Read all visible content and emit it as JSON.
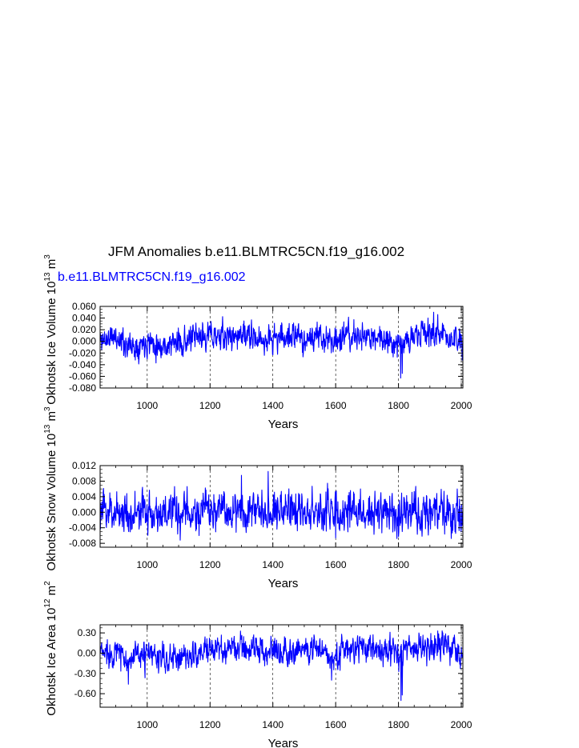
{
  "title": "JFM Anomalies b.e11.BLMTRC5CN.f19_g16.002",
  "subtitle": "b.e11.BLMTRC5CN.f19_g16.002",
  "colors": {
    "series": "#0000ff",
    "axis": "#000000",
    "grid": "#000000"
  },
  "chart_data": [
    {
      "type": "line",
      "title": "",
      "xlabel": "Years",
      "ylabel_text": "Okhotsk Ice Volume 10",
      "ylabel_exp": "13",
      "ylabel_unit": "m",
      "ylabel_unit_exp": "3",
      "xlim": [
        850,
        2005
      ],
      "ylim": [
        -0.08,
        0.06
      ],
      "xticks": [
        1000,
        1200,
        1400,
        1600,
        1800,
        2000
      ],
      "yticks": [
        "0.060",
        "0.040",
        "0.020",
        "0.000",
        "-0.020",
        "-0.040",
        "-0.060",
        "-0.080"
      ],
      "ytick_values": [
        0.06,
        0.04,
        0.02,
        0.0,
        -0.02,
        -0.04,
        -0.06,
        -0.08
      ],
      "grid": "dashed vertical at x ticks",
      "series": [
        {
          "x_start": 850,
          "x_end": 2005,
          "anchors": [
            [
              850,
              0.002
            ],
            [
              900,
              0.008
            ],
            [
              950,
              -0.01
            ],
            [
              1000,
              0.002
            ],
            [
              1050,
              -0.008
            ],
            [
              1100,
              -0.002
            ],
            [
              1150,
              0.004
            ],
            [
              1200,
              0.012
            ],
            [
              1250,
              0.006
            ],
            [
              1300,
              0.012
            ],
            [
              1350,
              0.002
            ],
            [
              1400,
              0.004
            ],
            [
              1450,
              0.01
            ],
            [
              1500,
              0.004
            ],
            [
              1550,
              0.006
            ],
            [
              1600,
              0.004
            ],
            [
              1650,
              0.008
            ],
            [
              1700,
              0.006
            ],
            [
              1750,
              0.006
            ],
            [
              1800,
              -0.002
            ],
            [
              1850,
              0.006
            ],
            [
              1900,
              0.016
            ],
            [
              1950,
              0.01
            ],
            [
              2005,
              -0.006
            ]
          ],
          "amplitude": 0.011,
          "extremes": [
            [
              1807,
              -0.063
            ],
            [
              1812,
              -0.055
            ],
            [
              1912,
              0.05
            ],
            [
              1925,
              0.046
            ],
            [
              2003,
              -0.032
            ]
          ]
        }
      ]
    },
    {
      "type": "line",
      "title": "",
      "xlabel": "Years",
      "ylabel_text": "Okhotsk Snow Volume 10",
      "ylabel_exp": "13",
      "ylabel_unit": "m",
      "ylabel_unit_exp": "3",
      "xlim": [
        850,
        2005
      ],
      "ylim": [
        -0.009,
        0.012
      ],
      "xticks": [
        1000,
        1200,
        1400,
        1600,
        1800,
        2000
      ],
      "yticks": [
        "0.012",
        "0.008",
        "0.004",
        "0.000",
        "-0.004",
        "-0.008"
      ],
      "ytick_values": [
        0.012,
        0.008,
        0.004,
        0.0,
        -0.004,
        -0.008
      ],
      "grid": "dashed vertical at x ticks",
      "series": [
        {
          "x_start": 850,
          "x_end": 2005,
          "anchors": [
            [
              850,
              0.0
            ],
            [
              900,
              0.0005
            ],
            [
              950,
              -0.0005
            ],
            [
              1000,
              0.0
            ],
            [
              1050,
              -0.0003
            ],
            [
              1100,
              -0.0005
            ],
            [
              1150,
              0.0
            ],
            [
              1200,
              0.0003
            ],
            [
              1250,
              0.0005
            ],
            [
              1300,
              0.001
            ],
            [
              1350,
              0.0008
            ],
            [
              1400,
              0.0012
            ],
            [
              1450,
              0.0005
            ],
            [
              1500,
              0.0005
            ],
            [
              1550,
              0.0003
            ],
            [
              1600,
              0.0
            ],
            [
              1650,
              0.0003
            ],
            [
              1700,
              0.0
            ],
            [
              1750,
              -0.0002
            ],
            [
              1800,
              -0.0005
            ],
            [
              1850,
              0.0
            ],
            [
              1900,
              0.0005
            ],
            [
              1950,
              -0.0005
            ],
            [
              2005,
              -0.001
            ]
          ],
          "amplitude": 0.0024,
          "extremes": [
            [
              1385,
              0.0105
            ],
            [
              1300,
              0.0095
            ],
            [
              1105,
              -0.0072
            ],
            [
              1165,
              -0.006
            ],
            [
              1600,
              -0.0066
            ]
          ]
        }
      ]
    },
    {
      "type": "line",
      "title": "",
      "xlabel": "Years",
      "ylabel_text": "Okhotsk Ice Area 10",
      "ylabel_exp": "12",
      "ylabel_unit": "m",
      "ylabel_unit_exp": "2",
      "xlim": [
        850,
        2005
      ],
      "ylim": [
        -0.8,
        0.42
      ],
      "xticks": [
        1000,
        1200,
        1400,
        1600,
        1800,
        2000
      ],
      "yticks": [
        "0.30",
        "0.00",
        "-0.30",
        "-0.60"
      ],
      "ytick_values": [
        0.3,
        0.0,
        -0.3,
        -0.6
      ],
      "grid": "dashed vertical at x ticks",
      "series": [
        {
          "x_start": 850,
          "x_end": 2005,
          "anchors": [
            [
              850,
              0.0
            ],
            [
              900,
              0.02
            ],
            [
              950,
              -0.1
            ],
            [
              1000,
              -0.02
            ],
            [
              1050,
              -0.1
            ],
            [
              1100,
              -0.06
            ],
            [
              1150,
              -0.02
            ],
            [
              1200,
              0.04
            ],
            [
              1250,
              0.06
            ],
            [
              1300,
              0.08
            ],
            [
              1350,
              0.06
            ],
            [
              1400,
              0.04
            ],
            [
              1450,
              0.06
            ],
            [
              1500,
              0.06
            ],
            [
              1550,
              0.04
            ],
            [
              1600,
              -0.04
            ],
            [
              1650,
              0.08
            ],
            [
              1700,
              0.06
            ],
            [
              1750,
              0.06
            ],
            [
              1800,
              0.02
            ],
            [
              1850,
              0.06
            ],
            [
              1900,
              0.1
            ],
            [
              1950,
              0.1
            ],
            [
              2005,
              -0.04
            ]
          ],
          "amplitude": 0.1,
          "extremes": [
            [
              1808,
              -0.7
            ],
            [
              1812,
              -0.62
            ],
            [
              1587,
              -0.4
            ],
            [
              940,
              -0.46
            ],
            [
              1915,
              0.26
            ]
          ]
        }
      ]
    }
  ]
}
